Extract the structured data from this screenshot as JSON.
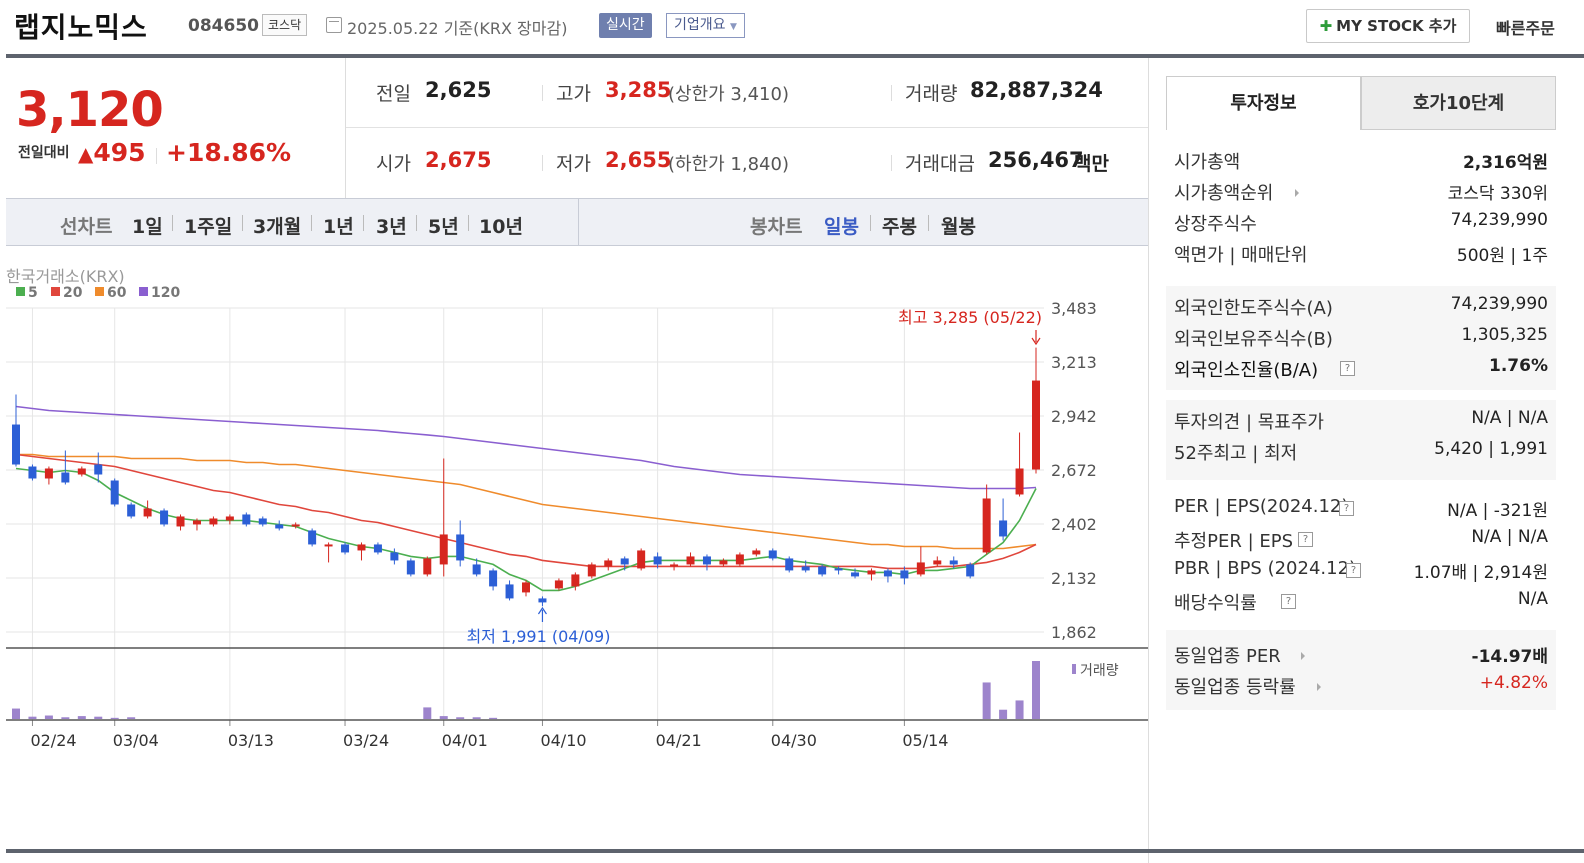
{
  "header": {
    "company_name": "랩지노믹스",
    "code": "084650",
    "market": "코스닥",
    "date_text": "2025.05.22 기준(KRX 장마감)",
    "realtime_label": "실시간",
    "company_info_label": "기업개요",
    "mystock_label": "MY STOCK 추가",
    "quick_order_label": "빠른주문"
  },
  "price": {
    "current": "3,120",
    "change_label": "전일대비",
    "change": "495",
    "rate": "+18.86%"
  },
  "stats": {
    "prev_label": "전일",
    "prev": "2,625",
    "high_label": "고가",
    "high": "3,285",
    "upper_limit": "(상한가 3,410)",
    "volume_label": "거래량",
    "volume": "82,887,324",
    "open_label": "시가",
    "open": "2,675",
    "low_label": "저가",
    "low": "2,655",
    "lower_limit": "(하한가 1,840)",
    "amount_label": "거래대금",
    "amount": "256,467",
    "amount_unit": "백만"
  },
  "chart_tabs": {
    "line_label": "선차트",
    "periods": [
      "1일",
      "1주일",
      "3개월",
      "1년",
      "3년",
      "5년",
      "10년"
    ],
    "candle_label": "봉차트",
    "candle_types": [
      "일봉",
      "주봉",
      "월봉"
    ],
    "active_candle": "일봉"
  },
  "chart_data": {
    "type": "candlestick",
    "source": "한국거래소(KRX)",
    "ma_legend": [
      {
        "name": "5",
        "color": "#4caf50"
      },
      {
        "name": "20",
        "color": "#e0463c"
      },
      {
        "name": "60",
        "color": "#ef8b2c"
      },
      {
        "name": "120",
        "color": "#8a5fd0"
      }
    ],
    "y_ticks": [
      "3,483",
      "3,213",
      "2,942",
      "2,672",
      "2,402",
      "2,132",
      "1,862"
    ],
    "ylim": [
      1862,
      3483
    ],
    "x_ticks": [
      "02/24",
      "03/04",
      "03/13",
      "03/24",
      "04/01",
      "04/10",
      "04/21",
      "04/30",
      "05/14"
    ],
    "high_annotation": "최고 3,285 (05/22)",
    "low_annotation": "최저 1,991 (04/09)",
    "volume_label": "거래량",
    "candles": [
      [
        2900,
        2700,
        3050,
        2690
      ],
      [
        2690,
        2630,
        2700,
        2620
      ],
      [
        2630,
        2680,
        2690,
        2600
      ],
      [
        2660,
        2610,
        2770,
        2600
      ],
      [
        2650,
        2680,
        2690,
        2640
      ],
      [
        2700,
        2650,
        2760,
        2610
      ],
      [
        2620,
        2500,
        2630,
        2490
      ],
      [
        2500,
        2440,
        2510,
        2430
      ],
      [
        2440,
        2480,
        2520,
        2430
      ],
      [
        2470,
        2400,
        2480,
        2390
      ],
      [
        2390,
        2440,
        2450,
        2370
      ],
      [
        2400,
        2420,
        2430,
        2370
      ],
      [
        2400,
        2430,
        2440,
        2390
      ],
      [
        2420,
        2440,
        2450,
        2400
      ],
      [
        2450,
        2400,
        2460,
        2390
      ],
      [
        2430,
        2400,
        2440,
        2390
      ],
      [
        2400,
        2380,
        2420,
        2370
      ],
      [
        2390,
        2400,
        2410,
        2380
      ],
      [
        2370,
        2300,
        2380,
        2290
      ],
      [
        2290,
        2300,
        2310,
        2210
      ],
      [
        2300,
        2260,
        2310,
        2250
      ],
      [
        2270,
        2300,
        2310,
        2220
      ],
      [
        2300,
        2260,
        2310,
        2250
      ],
      [
        2260,
        2220,
        2280,
        2200
      ],
      [
        2220,
        2150,
        2230,
        2140
      ],
      [
        2150,
        2230,
        2240,
        2140
      ],
      [
        2200,
        2350,
        2730,
        2140
      ],
      [
        2350,
        2220,
        2420,
        2190
      ],
      [
        2200,
        2150,
        2230,
        2140
      ],
      [
        2170,
        2090,
        2180,
        2070
      ],
      [
        2100,
        2030,
        2120,
        2020
      ],
      [
        2060,
        2110,
        2120,
        2040
      ],
      [
        2030,
        2010,
        2040,
        1991
      ],
      [
        2080,
        2120,
        2130,
        2070
      ],
      [
        2090,
        2150,
        2160,
        2070
      ],
      [
        2140,
        2200,
        2210,
        2130
      ],
      [
        2190,
        2220,
        2230,
        2170
      ],
      [
        2230,
        2200,
        2240,
        2170
      ],
      [
        2180,
        2270,
        2280,
        2170
      ],
      [
        2240,
        2200,
        2260,
        2180
      ],
      [
        2190,
        2200,
        2210,
        2170
      ],
      [
        2200,
        2240,
        2260,
        2190
      ],
      [
        2240,
        2200,
        2250,
        2170
      ],
      [
        2200,
        2220,
        2230,
        2190
      ],
      [
        2200,
        2250,
        2260,
        2190
      ],
      [
        2250,
        2270,
        2280,
        2240
      ],
      [
        2270,
        2230,
        2280,
        2220
      ],
      [
        2230,
        2170,
        2240,
        2160
      ],
      [
        2190,
        2170,
        2220,
        2160
      ],
      [
        2190,
        2150,
        2200,
        2140
      ],
      [
        2180,
        2170,
        2190,
        2150
      ],
      [
        2160,
        2140,
        2180,
        2130
      ],
      [
        2150,
        2170,
        2180,
        2120
      ],
      [
        2170,
        2140,
        2180,
        2110
      ],
      [
        2170,
        2130,
        2190,
        2100
      ],
      [
        2150,
        2210,
        2290,
        2140
      ],
      [
        2200,
        2220,
        2240,
        2190
      ],
      [
        2220,
        2200,
        2240,
        2180
      ],
      [
        2200,
        2140,
        2210,
        2130
      ],
      [
        2260,
        2530,
        2600,
        2250
      ],
      [
        2420,
        2340,
        2530,
        2320
      ],
      [
        2550,
        2680,
        2860,
        2540
      ],
      [
        2675,
        3120,
        3285,
        2655
      ]
    ],
    "ma5": [
      2680,
      2670,
      2660,
      2670,
      2660,
      2620,
      2560,
      2520,
      2480,
      2450,
      2430,
      2420,
      2420,
      2420,
      2420,
      2410,
      2400,
      2390,
      2360,
      2330,
      2310,
      2290,
      2280,
      2260,
      2240,
      2230,
      2240,
      2240,
      2220,
      2200,
      2150,
      2120,
      2070,
      2070,
      2090,
      2120,
      2150,
      2180,
      2210,
      2220,
      2220,
      2220,
      2220,
      2220,
      2220,
      2230,
      2240,
      2220,
      2210,
      2200,
      2180,
      2170,
      2160,
      2160,
      2150,
      2170,
      2170,
      2180,
      2190,
      2250,
      2310,
      2420,
      2580
    ],
    "ma20": [
      2750,
      2740,
      2730,
      2720,
      2710,
      2700,
      2690,
      2670,
      2650,
      2630,
      2610,
      2590,
      2570,
      2560,
      2540,
      2520,
      2500,
      2490,
      2470,
      2460,
      2440,
      2420,
      2410,
      2390,
      2370,
      2350,
      2330,
      2310,
      2290,
      2270,
      2250,
      2240,
      2220,
      2210,
      2200,
      2190,
      2190,
      2190,
      2190,
      2190,
      2190,
      2190,
      2190,
      2190,
      2190,
      2190,
      2190,
      2190,
      2190,
      2190,
      2190,
      2190,
      2190,
      2180,
      2180,
      2180,
      2190,
      2190,
      2200,
      2210,
      2230,
      2260,
      2300
    ],
    "ma60": [
      2750,
      2750,
      2740,
      2740,
      2740,
      2740,
      2740,
      2730,
      2730,
      2730,
      2730,
      2720,
      2720,
      2720,
      2710,
      2710,
      2700,
      2700,
      2690,
      2680,
      2670,
      2660,
      2650,
      2640,
      2630,
      2620,
      2610,
      2600,
      2580,
      2560,
      2540,
      2520,
      2500,
      2490,
      2480,
      2470,
      2460,
      2450,
      2440,
      2430,
      2420,
      2410,
      2400,
      2390,
      2380,
      2370,
      2360,
      2350,
      2340,
      2330,
      2320,
      2310,
      2300,
      2300,
      2290,
      2290,
      2290,
      2280,
      2280,
      2280,
      2280,
      2290,
      2300
    ],
    "ma120": [
      2990,
      2980,
      2970,
      2965,
      2960,
      2955,
      2950,
      2945,
      2940,
      2935,
      2930,
      2925,
      2920,
      2915,
      2910,
      2905,
      2900,
      2895,
      2890,
      2885,
      2880,
      2875,
      2870,
      2862,
      2855,
      2848,
      2840,
      2830,
      2820,
      2810,
      2800,
      2790,
      2780,
      2770,
      2760,
      2750,
      2740,
      2730,
      2720,
      2705,
      2690,
      2680,
      2670,
      2660,
      2650,
      2645,
      2640,
      2635,
      2630,
      2625,
      2620,
      2615,
      2610,
      2605,
      2600,
      2595,
      2590,
      2585,
      2580,
      2580,
      2580,
      2580,
      2585
    ],
    "volume": [
      0.18,
      0.04,
      0.06,
      0.03,
      0.05,
      0.04,
      0.02,
      0.03,
      0,
      0,
      0,
      0,
      0,
      0,
      0,
      0,
      0,
      0,
      0,
      0,
      0,
      0,
      0,
      0,
      0,
      0.2,
      0.05,
      0.03,
      0.03,
      0.02,
      0,
      0,
      0,
      0,
      0,
      0,
      0,
      0,
      0,
      0,
      0,
      0,
      0,
      0,
      0,
      0,
      0,
      0,
      0,
      0,
      0,
      0,
      0,
      0,
      0,
      0,
      0,
      0,
      0,
      0.63,
      0.16,
      0.32,
      1.0
    ]
  },
  "invest_info": {
    "tab_active": "투자정보",
    "tab_other": "호가10단계",
    "rows1": [
      {
        "label": "시가총액",
        "value": "2,316",
        "unit": "억원"
      },
      {
        "label": "시가총액순위",
        "value": "코스닥 330위"
      },
      {
        "label": "상장주식수",
        "value": "74,239,990"
      },
      {
        "label": "액면가 | 매매단위",
        "value": "500원 | 1주"
      }
    ],
    "rows2": [
      {
        "label": "외국인한도주식수(A)",
        "value": "74,239,990"
      },
      {
        "label": "외국인보유주식수(B)",
        "value": "1,305,325"
      },
      {
        "label": "외국인소진율(B/A)",
        "value": "1.76%"
      }
    ],
    "rows3": [
      {
        "label": "투자의견 | 목표주가",
        "value": "N/A | N/A"
      },
      {
        "label": "52주최고 | 최저",
        "value": "5,420 | 1,991"
      }
    ],
    "rows4": [
      {
        "label": "PER | EPS(2024.12)",
        "value": "N/A | -321원"
      },
      {
        "label": "추정PER | EPS",
        "value": "N/A | N/A"
      },
      {
        "label": "PBR | BPS (2024.12)",
        "value": "1.07배 | 2,914원"
      },
      {
        "label": "배당수익률",
        "value": "N/A"
      }
    ],
    "rows5": [
      {
        "label": "동일업종 PER",
        "value": "-14.97배"
      },
      {
        "label": "동일업종 등락률",
        "value": "+4.82%"
      }
    ]
  }
}
